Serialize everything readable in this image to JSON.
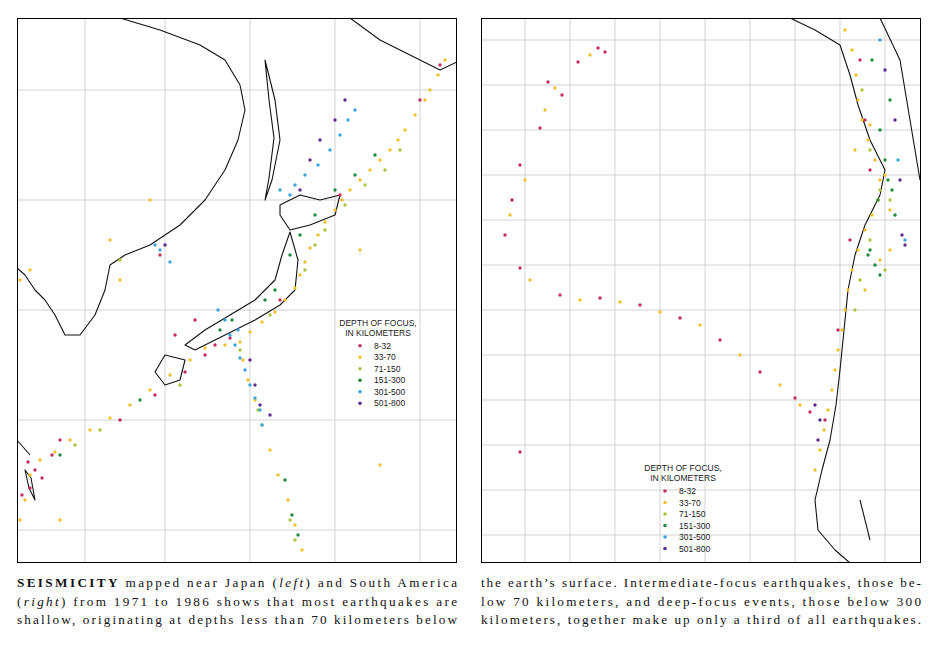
{
  "chart_data": [
    {
      "type": "scatter",
      "xlim": [
        0,
        440
      ],
      "ylim": [
        0,
        545
      ],
      "xticks": [
        68,
        148,
        233,
        318,
        403
      ],
      "yticks": [
        33,
        143,
        253,
        363,
        473
      ],
      "grid": true,
      "tick_labels": false,
      "legend": "right",
      "marker": "circle",
      "legend_title": [
        "DEPTH OF FOCUS,",
        "IN KILOMETERS"
      ],
      "series": [
        {
          "name": "8-32",
          "color": "#c4305e",
          "x": [
            11,
            18,
            25,
            13,
            5,
            35,
            103,
            138,
            168,
            188,
            198,
            178,
            158,
            213,
            143,
            323,
            423,
            403,
            263,
            43
          ],
          "y": [
            101,
            93,
            85,
            75,
            68,
            108,
            143,
            168,
            191,
            208,
            218,
            243,
            228,
            225,
            308,
            368,
            498,
            463,
            263,
            123
          ]
        },
        {
          "name": "33-70",
          "color": "#f2c12e",
          "x": [
            428,
            421,
            413,
            408,
            398,
            388,
            381,
            373,
            363,
            353,
            343,
            333,
            325,
            318,
            308,
            301,
            293,
            288,
            283,
            278,
            268,
            258,
            245,
            233,
            223,
            226,
            231,
            238,
            245,
            253,
            261,
            271,
            278,
            285,
            208,
            188,
            173,
            153,
            133,
            113,
            93,
            73,
            53,
            38,
            23,
            13,
            8,
            3,
            13,
            3,
            93,
            103,
            133,
            343,
            363,
            43
          ],
          "y": [
            503,
            488,
            473,
            463,
            448,
            433,
            423,
            413,
            403,
            393,
            383,
            373,
            363,
            353,
            341,
            328,
            315,
            301,
            288,
            275,
            263,
            251,
            241,
            231,
            221,
            203,
            183,
            163,
            138,
            113,
            88,
            63,
            38,
            13,
            218,
            215,
            203,
            188,
            173,
            158,
            145,
            133,
            123,
            111,
            103,
            88,
            63,
            43,
            293,
            283,
            323,
            283,
            363,
            313,
            98,
            43
          ]
        },
        {
          "name": "71-150",
          "color": "#a8c83c",
          "x": [
            383,
            368,
            348,
            328,
            308,
            298,
            288,
            253,
            223,
            163,
            83,
            58,
            273,
            278,
            241,
            103
          ],
          "y": [
            413,
            393,
            378,
            358,
            333,
            318,
            293,
            248,
            213,
            178,
            133,
            118,
            43,
            23,
            153,
            303
          ]
        },
        {
          "name": "151-300",
          "color": "#1e8c3c",
          "x": [
            358,
            338,
            318,
            298,
            283,
            273,
            258,
            248,
            215,
            203,
            268,
            275,
            281,
            43,
            123
          ],
          "y": [
            408,
            388,
            373,
            348,
            328,
            308,
            273,
            263,
            243,
            233,
            83,
            48,
            28,
            108,
            163
          ]
        },
        {
          "name": "301-500",
          "color": "#39a6e0",
          "x": [
            338,
            331,
            323,
            313,
            301,
            288,
            278,
            273,
            263,
            143,
            153,
            138,
            208,
            213,
            218,
            223,
            228,
            233,
            238,
            243,
            245,
            201,
            221
          ],
          "y": [
            453,
            443,
            428,
            413,
            398,
            388,
            378,
            368,
            373,
            313,
            301,
            318,
            243,
            228,
            218,
            205,
            193,
            178,
            165,
            153,
            138,
            253,
            233
          ]
        },
        {
          "name": "501-800",
          "color": "#5b2d8e",
          "x": [
            328,
            318,
            303,
            293,
            283,
            148,
            243,
            238,
            233,
            253
          ],
          "y": [
            463,
            443,
            423,
            403,
            373,
            318,
            158,
            178,
            203,
            148
          ]
        }
      ]
    },
    {
      "type": "scatter",
      "xlim": [
        0,
        440
      ],
      "ylim": [
        0,
        545
      ],
      "xticks": [
        44,
        89,
        134,
        179,
        224,
        269,
        314,
        359,
        404
      ],
      "yticks": [
        28,
        73,
        118,
        163,
        208,
        253,
        298,
        343,
        388,
        433,
        478,
        523
      ],
      "grid": true,
      "tick_labels": false,
      "legend": "bottom",
      "marker": "circle",
      "legend_title": [
        "DEPTH OF FOCUS,",
        "IN KILOMETERS"
      ],
      "series": [
        {
          "name": "8-32",
          "color": "#c4305e",
          "x": [
            117,
            124,
            97,
            67,
            81,
            59,
            39,
            31,
            24,
            39,
            79,
            119,
            159,
            199,
            239,
            279,
            314,
            329,
            39,
            379,
            384,
            389,
            369,
            357,
            344
          ],
          "y": [
            515,
            511,
            501,
            481,
            468,
            435,
            398,
            363,
            328,
            295,
            268,
            265,
            258,
            245,
            223,
            191,
            165,
            151,
            111,
            503,
            443,
            393,
            323,
            233,
            143
          ]
        },
        {
          "name": "33-70",
          "color": "#f2c12e",
          "x": [
            109,
            74,
            64,
            44,
            29,
            49,
            99,
            139,
            179,
            219,
            259,
            299,
            319,
            364,
            371,
            375,
            377,
            381,
            387,
            394,
            399,
            397,
            391,
            384,
            377,
            371,
            367,
            364,
            361,
            357,
            354,
            351,
            347,
            343,
            339,
            334,
            389,
            404,
            409,
            399,
            384,
            409,
            374
          ],
          "y": [
            508,
            475,
            453,
            383,
            348,
            283,
            263,
            261,
            251,
            238,
            208,
            178,
            158,
            533,
            513,
            488,
            463,
            443,
            423,
            403,
            383,
            363,
            348,
            333,
            313,
            293,
            273,
            253,
            233,
            213,
            193,
            173,
            153,
            133,
            113,
            93,
            438,
            388,
            353,
            303,
            273,
            313,
            413
          ]
        },
        {
          "name": "71-150",
          "color": "#a8c83c",
          "x": [
            381,
            389,
            399,
            389,
            379,
            374,
            409,
            404
          ],
          "y": [
            473,
            413,
            373,
            323,
            283,
            253,
            363,
            293
          ]
        },
        {
          "name": "151-300",
          "color": "#1e8c3c",
          "x": [
            399,
            404,
            407,
            411,
            397,
            414,
            389,
            394,
            399,
            387,
            391,
            409
          ],
          "y": [
            433,
            403,
            383,
            373,
            363,
            348,
            313,
            298,
            288,
            308,
            503,
            463
          ]
        },
        {
          "name": "301-500",
          "color": "#39a6e0",
          "x": [
            417,
            424,
            399
          ],
          "y": [
            403,
            323,
            523
          ]
        },
        {
          "name": "501-800",
          "color": "#5b2d8e",
          "x": [
            419,
            421,
            424,
            414,
            404,
            334,
            339,
            337
          ],
          "y": [
            383,
            328,
            318,
            443,
            493,
            158,
            143,
            123
          ]
        }
      ]
    }
  ],
  "caption": {
    "left": [
      [
        {
          "text": "SEISMICITY",
          "style": "bold"
        },
        {
          "text": " mapped near Japan ("
        },
        {
          "text": "left",
          "style": "italic"
        },
        {
          "text": ") and South America"
        }
      ],
      [
        {
          "text": "("
        },
        {
          "text": "right",
          "style": "italic"
        },
        {
          "text": ") from 1971 to 1986 shows that most earthquakes are"
        }
      ],
      [
        {
          "text": "shallow, originating at depths less than 70 kilometers below"
        }
      ]
    ],
    "right": [
      [
        {
          "text": "the earth’s surface. Intermediate-focus earthquakes, those be-"
        }
      ],
      [
        {
          "text": "low 70 kilometers, and deep-focus events, those below 300"
        }
      ],
      [
        {
          "text": "kilometers, together make up only a third of all earthquakes."
        }
      ]
    ]
  }
}
